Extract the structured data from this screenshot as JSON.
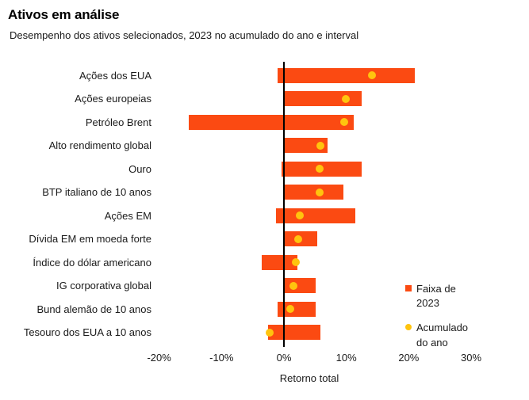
{
  "chart_data": {
    "type": "bar",
    "variant": "range-bar-with-ytd-dot",
    "orientation": "horizontal",
    "title": "Ativos em análise",
    "subtitle": "Desempenho dos ativos selecionados, 2023 no acumulado do ano e interval",
    "xlabel": "Retorno total",
    "xlim": [
      -20,
      30
    ],
    "x_tick_labels": [
      "-20%",
      "-10%",
      "0%",
      "10%",
      "20%",
      "30%"
    ],
    "x_tick_values": [
      -20,
      -10,
      0,
      10,
      20,
      30
    ],
    "grid": false,
    "zero_axis": true,
    "axis_color": "#000000",
    "text_color": "#1a1a1a",
    "categories": [
      "Ações dos EUA",
      "Ações europeias",
      "Petróleo Brent",
      "Alto rendimento global",
      "Ouro",
      "BTP italiano de 10 anos",
      "Ações EM",
      "Dívida EM em moeda forte",
      "Índice do dólar americano",
      "IG corporativa global",
      "Bund alemão de 10 anos",
      "Tesouro dos EUA a 10 anos"
    ],
    "series": [
      {
        "name": "Faixa de 2023",
        "mark": "range-bar",
        "color": "#fb4a12",
        "unit": "%",
        "ranges": [
          [
            -1.0,
            21.0
          ],
          [
            0.0,
            12.5
          ],
          [
            -15.3,
            11.2
          ],
          [
            0.0,
            7.0
          ],
          [
            -0.4,
            12.5
          ],
          [
            0.0,
            9.5
          ],
          [
            -1.3,
            11.4
          ],
          [
            0.0,
            5.4
          ],
          [
            -3.6,
            2.1
          ],
          [
            0.0,
            5.1
          ],
          [
            -1.0,
            5.1
          ],
          [
            -2.5,
            5.8
          ]
        ]
      },
      {
        "name": "Acumulado do ano",
        "mark": "dot",
        "color": "#ffc40e",
        "unit": "%",
        "values": [
          14.1,
          9.9,
          9.7,
          5.9,
          5.7,
          5.7,
          2.5,
          2.3,
          1.9,
          1.5,
          1.0,
          -2.3
        ]
      }
    ],
    "legend": {
      "position": "right",
      "entries": [
        {
          "label": "Faixa de 2023",
          "marker": "square",
          "color": "#fb4a12"
        },
        {
          "label": "Acumulado do ano",
          "marker": "circle",
          "color": "#ffc40e"
        }
      ]
    }
  }
}
